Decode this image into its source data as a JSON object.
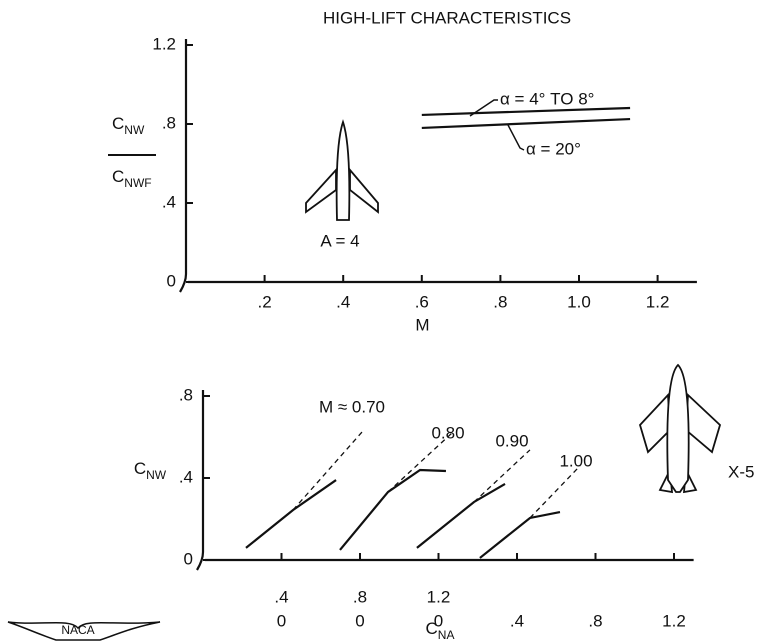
{
  "chart_data": [
    {
      "type": "line",
      "title": "HIGH-LIFT CHARACTERISTICS",
      "ylabel": {
        "numerator": [
          "C",
          "NW"
        ],
        "denominator": [
          "C",
          "NWF"
        ]
      },
      "xlabel": "M",
      "annotation": "A = 4",
      "x": [
        0.6,
        1.13
      ],
      "series": [
        {
          "name": "α = 4° TO 8°",
          "color": "#111111",
          "values": [
            0.846,
            0.881
          ]
        },
        {
          "name": "α = 20°",
          "color": "#111111",
          "values": [
            0.78,
            0.825
          ]
        }
      ],
      "xlim": [
        0,
        1.3
      ],
      "ylim": [
        0,
        1.2
      ],
      "xticks": [
        {
          "value": 0.2,
          "label": ".2"
        },
        {
          "value": 0.4,
          "label": ".4"
        },
        {
          "value": 0.6,
          "label": ".6"
        },
        {
          "value": 0.8,
          "label": ".8"
        },
        {
          "value": 1.0,
          "label": "1.0"
        },
        {
          "value": 1.2,
          "label": "1.2"
        }
      ],
      "yticks": [
        0,
        {
          "value": 0.4,
          "label": ".4"
        },
        {
          "value": 0.8,
          "label": ".8"
        },
        1.2
      ]
    },
    {
      "type": "line",
      "ylabel": [
        "C",
        "NW"
      ],
      "xlabel": [
        "C",
        "NA"
      ],
      "annotation": "X-5",
      "series": [
        {
          "name": "M ≈ 0.70",
          "color": "#111111",
          "x": [
            0.219,
            0.459,
            0.678
          ],
          "values": [
            0.059,
            0.244,
            0.39
          ],
          "dashed": {
            "x": [
              0.459,
              0.81
            ],
            "values": [
              0.244,
              0.624
            ]
          }
        },
        {
          "name": "0.80",
          "color": "#111111",
          "x": [
            0.698,
            0.943,
            1.106,
            1.238
          ],
          "values": [
            0.049,
            0.332,
            0.439,
            0.434
          ],
          "dashed": {
            "x": [
              0.943,
              1.274
            ],
            "values": [
              0.332,
              0.624
            ]
          }
        },
        {
          "name": "0.90",
          "color": "#111111",
          "x": [
            1.09,
            1.381,
            1.539
          ],
          "values": [
            0.059,
            0.283,
            0.371
          ],
          "dashed": {
            "x": [
              1.381,
              1.666
            ],
            "values": [
              0.283,
              0.537
            ]
          }
        },
        {
          "name": "1.00",
          "color": "#111111",
          "x": [
            1.411,
            1.666,
            1.819
          ],
          "values": [
            0.01,
            0.205,
            0.234
          ],
          "dashed": {
            "x": [
              1.666,
              1.921
            ],
            "values": [
              0.205,
              0.459
            ]
          }
        }
      ],
      "xlim": [
        0,
        2.5
      ],
      "ylim": [
        0,
        0.8
      ],
      "xticks": [
        [
          {
            "value": 0.4,
            "label": ".4"
          },
          {
            "value": 0.8,
            "label": ".8"
          },
          1.2
        ],
        [
          {
            "value": 0.4,
            "label": "0"
          },
          {
            "value": 0.8,
            "label": "0"
          },
          {
            "value": 1.2,
            "label": "0"
          },
          {
            "value": 1.6,
            "label": ".4"
          },
          {
            "value": 2.0,
            "label": ".8"
          },
          {
            "value": 2.4,
            "label": "1.2"
          }
        ]
      ],
      "yticks": [
        0,
        {
          "value": 0.4,
          "label": ".4"
        },
        {
          "value": 0.8,
          "label": ".8"
        }
      ]
    }
  ],
  "logo": "NACA"
}
